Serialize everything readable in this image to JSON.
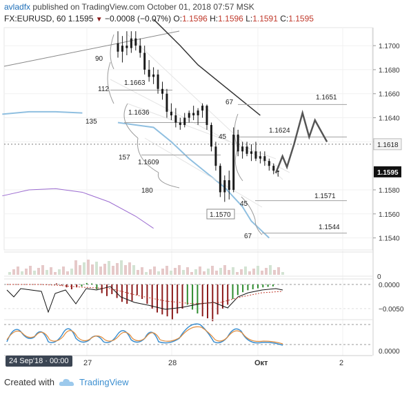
{
  "header": {
    "user": "avladfx",
    "published_text": "published on TradingView.com",
    "datetime": "October 01, 2018 07:57 MSK",
    "symbol": "FX:EURUSD, 60",
    "last": "1.1595",
    "change": "−0.0008 (−0.07%)",
    "O_label": "O:",
    "O": "1.1596",
    "H_label": "H:",
    "H": "1.1596",
    "L_label": "L:",
    "L": "1.1591",
    "C_label": "C:",
    "C": "1.1595"
  },
  "footer": {
    "created_with": "Created with",
    "brand": "TradingView"
  },
  "crosshair_date": "24 Sep'18 · 00:00",
  "colors": {
    "candle": "#1a1a1a",
    "ema_blue": "#8fbfe0",
    "ema_dark": "#333333",
    "ema_purple": "#9b6bd0",
    "forecast": "#555555",
    "macd_up": "#2e8b2e",
    "macd_down": "#8b1a1a",
    "stoch_k": "#3c8fd0",
    "stoch_d": "#e08a3a",
    "price_badge": "#111111"
  },
  "chart_data": {
    "type": "candlestick",
    "symbol": "FX:EURUSD",
    "timeframe": "60",
    "x_ticks": [
      "27",
      "28",
      "Окт",
      "2"
    ],
    "y_ticks": [
      "1.1700",
      "1.1680",
      "1.1660",
      "1.1640",
      "1.1620",
      "1.1580",
      "1.1560",
      "1.1540"
    ],
    "ylim": [
      1.153,
      1.1715
    ],
    "current_price": "1.1595",
    "crosshair_price": "1.1618",
    "candles": [
      {
        "o": 1.1702,
        "h": 1.1712,
        "l": 1.169,
        "c": 1.1695
      },
      {
        "o": 1.1695,
        "h": 1.1708,
        "l": 1.1686,
        "c": 1.17
      },
      {
        "o": 1.17,
        "h": 1.1712,
        "l": 1.1692,
        "c": 1.1698
      },
      {
        "o": 1.1698,
        "h": 1.1712,
        "l": 1.1694,
        "c": 1.1706
      },
      {
        "o": 1.1706,
        "h": 1.1712,
        "l": 1.1696,
        "c": 1.17
      },
      {
        "o": 1.17,
        "h": 1.1706,
        "l": 1.169,
        "c": 1.1694
      },
      {
        "o": 1.1694,
        "h": 1.17,
        "l": 1.1676,
        "c": 1.168
      },
      {
        "o": 1.168,
        "h": 1.1688,
        "l": 1.167,
        "c": 1.1674
      },
      {
        "o": 1.1674,
        "h": 1.1682,
        "l": 1.1668,
        "c": 1.1676
      },
      {
        "o": 1.1676,
        "h": 1.168,
        "l": 1.166,
        "c": 1.1664
      },
      {
        "o": 1.1664,
        "h": 1.167,
        "l": 1.1655,
        "c": 1.166
      },
      {
        "o": 1.166,
        "h": 1.1664,
        "l": 1.164,
        "c": 1.1645
      },
      {
        "o": 1.1645,
        "h": 1.1652,
        "l": 1.1638,
        "c": 1.1642
      },
      {
        "o": 1.1642,
        "h": 1.1648,
        "l": 1.1632,
        "c": 1.1636
      },
      {
        "o": 1.1636,
        "h": 1.164,
        "l": 1.163,
        "c": 1.1634
      },
      {
        "o": 1.1634,
        "h": 1.1644,
        "l": 1.1632,
        "c": 1.164
      },
      {
        "o": 1.164,
        "h": 1.1646,
        "l": 1.1636,
        "c": 1.1644
      },
      {
        "o": 1.1644,
        "h": 1.165,
        "l": 1.1638,
        "c": 1.1642
      },
      {
        "o": 1.1642,
        "h": 1.1648,
        "l": 1.1634,
        "c": 1.1646
      },
      {
        "o": 1.1646,
        "h": 1.1652,
        "l": 1.164,
        "c": 1.165
      },
      {
        "o": 1.165,
        "h": 1.1651,
        "l": 1.163,
        "c": 1.1634
      },
      {
        "o": 1.1634,
        "h": 1.1636,
        "l": 1.1612,
        "c": 1.1616
      },
      {
        "o": 1.1616,
        "h": 1.162,
        "l": 1.1596,
        "c": 1.16
      },
      {
        "o": 1.16,
        "h": 1.1602,
        "l": 1.1574,
        "c": 1.1578
      },
      {
        "o": 1.1578,
        "h": 1.1592,
        "l": 1.157,
        "c": 1.1588
      },
      {
        "o": 1.1588,
        "h": 1.1596,
        "l": 1.1572,
        "c": 1.158
      },
      {
        "o": 1.158,
        "h": 1.1632,
        "l": 1.1578,
        "c": 1.1626
      },
      {
        "o": 1.1626,
        "h": 1.163,
        "l": 1.1608,
        "c": 1.1612
      },
      {
        "o": 1.1612,
        "h": 1.162,
        "l": 1.1606,
        "c": 1.1616
      },
      {
        "o": 1.1616,
        "h": 1.162,
        "l": 1.1608,
        "c": 1.161
      },
      {
        "o": 1.161,
        "h": 1.1618,
        "l": 1.1604,
        "c": 1.1612
      },
      {
        "o": 1.1612,
        "h": 1.162,
        "l": 1.1604,
        "c": 1.1606
      },
      {
        "o": 1.1606,
        "h": 1.1612,
        "l": 1.1602,
        "c": 1.1608
      },
      {
        "o": 1.1608,
        "h": 1.1612,
        "l": 1.16,
        "c": 1.1604
      },
      {
        "o": 1.1604,
        "h": 1.1606,
        "l": 1.1596,
        "c": 1.16
      },
      {
        "o": 1.16,
        "h": 1.1602,
        "l": 1.1593,
        "c": 1.1596
      },
      {
        "o": 1.1596,
        "h": 1.1596,
        "l": 1.1591,
        "c": 1.1595
      }
    ],
    "ema_dark": [
      [
        8,
        1.1722
      ],
      [
        14,
        1.17
      ],
      [
        18,
        1.1684
      ],
      [
        24,
        1.1666
      ],
      [
        32,
        1.1642
      ]
    ],
    "ema_blue": [
      [
        0,
        1.1636
      ],
      [
        4,
        1.1634
      ],
      [
        8,
        1.1632
      ],
      [
        12,
        1.162
      ],
      [
        16,
        1.1606
      ],
      [
        20,
        1.1594
      ],
      [
        24,
        1.1582
      ],
      [
        26,
        1.1574
      ],
      [
        28,
        1.1566
      ],
      [
        30,
        1.1554
      ],
      [
        34,
        1.154
      ]
    ],
    "ema_purple_left": [
      [
        -26,
        1.1575
      ],
      [
        -20,
        1.158
      ],
      [
        -14,
        1.1581
      ],
      [
        -8,
        1.1578
      ],
      [
        -2,
        1.157
      ],
      [
        4,
        1.1558
      ],
      [
        8,
        1.1548
      ]
    ],
    "ema_blue_left": [
      [
        -26,
        1.1643
      ],
      [
        -20,
        1.1645
      ],
      [
        -14,
        1.1645
      ],
      [
        -8,
        1.1644
      ]
    ],
    "forecast_path": [
      [
        35.5,
        1.1594
      ],
      [
        37,
        1.1608
      ],
      [
        38,
        1.1599
      ],
      [
        39.6,
        1.1618
      ],
      [
        41.5,
        1.1644
      ],
      [
        43,
        1.1624
      ],
      [
        44.3,
        1.1638
      ],
      [
        47,
        1.162
      ]
    ],
    "gann_labels": [
      "90",
      "112",
      "135",
      "157",
      "180",
      "67",
      "45",
      "45",
      "67"
    ],
    "price_levels": [
      {
        "label": "1.1663",
        "value": 1.1663
      },
      {
        "label": "1.1636",
        "value": 1.1636
      },
      {
        "label": "1.1609",
        "value": 1.1609
      },
      {
        "label": "1.1651",
        "value": 1.1651
      },
      {
        "label": "1.1624",
        "value": 1.1624
      },
      {
        "label": "1.1571",
        "value": 1.1571
      },
      {
        "label": "1.1544",
        "value": 1.1544
      },
      {
        "label": "1.1570",
        "value": 1.157
      }
    ],
    "macd_ticks": [
      "0.0000",
      "−0.0050"
    ],
    "stoch_ticks": [
      "0.0000"
    ],
    "volume_tick": "0",
    "macd_hist": [
      0.0002,
      -0.0002,
      -0.0006,
      -0.001,
      -0.0006,
      -0.0004,
      0.0003,
      0.0002,
      -0.001,
      -0.0018,
      -0.0024,
      -0.002,
      -0.0028,
      -0.0036,
      -0.004,
      -0.0034,
      -0.0022,
      -0.003,
      -0.004,
      -0.005,
      -0.0058,
      -0.0062,
      -0.0066,
      -0.0072,
      -0.006,
      -0.005,
      -0.0042,
      -0.0052,
      -0.006,
      -0.0066,
      -0.007,
      -0.0076,
      -0.0062,
      -0.005,
      -0.0042,
      -0.003,
      -0.0022,
      -0.0016,
      -0.0012,
      -0.001,
      -0.0008,
      -0.0006,
      -0.0005,
      -0.0004
    ]
  }
}
